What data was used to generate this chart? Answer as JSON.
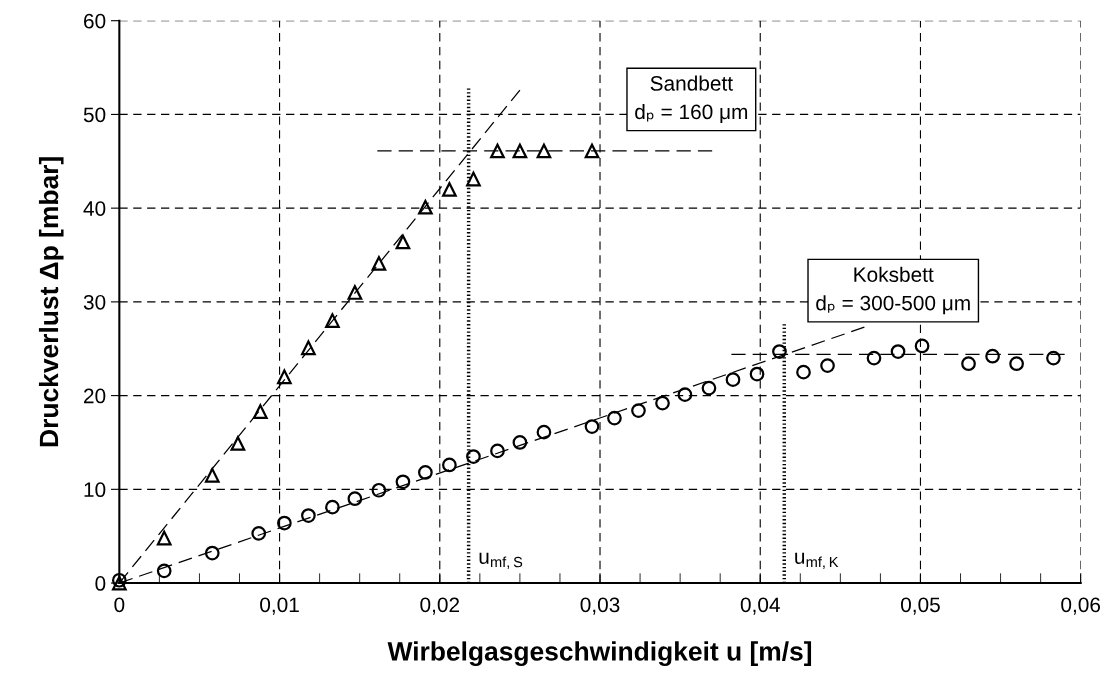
{
  "chart_data": {
    "type": "scatter",
    "xlabel": "Wirbelgasgeschwindigkeit u [m/s]",
    "ylabel": "Druckverlust Δp [mbar]",
    "xlim": [
      0,
      0.06
    ],
    "xticks": [
      0,
      {
        "value": 0.01,
        "label": "0,01"
      },
      {
        "value": 0.02,
        "label": "0,02"
      },
      {
        "value": 0.03,
        "label": "0,03"
      },
      {
        "value": 0.04,
        "label": "0,04"
      },
      {
        "value": 0.05,
        "label": "0,05"
      },
      {
        "value": 0.06,
        "label": "0,06"
      }
    ],
    "ylim": [
      0,
      60
    ],
    "yticks": [
      0,
      10,
      20,
      30,
      40,
      50,
      60
    ],
    "grid": true,
    "series": [
      {
        "name": "Sandbett\ndₚ = 160 μm",
        "color": "#000000",
        "marker": "triangle",
        "x": [
          0,
          0.0028,
          0.0058,
          0.0074,
          0.0088,
          0.0103,
          0.0118,
          0.0133,
          0.0147,
          0.0162,
          0.0177,
          0.0191,
          0.0206,
          0.0221,
          0.0236,
          0.025,
          0.0265,
          0.0295
        ],
        "values": [
          0,
          4.8,
          11.5,
          14.9,
          18.3,
          22.0,
          25.1,
          28.0,
          31.0,
          34.1,
          36.4,
          40.1,
          42.0,
          43.1,
          46.1,
          46.1,
          46.1,
          46.1
        ]
      },
      {
        "name": "Koksbett\ndₚ = 300-500 μm",
        "color": "#000000",
        "marker": "circle",
        "x": [
          0,
          0.0028,
          0.0058,
          0.0087,
          0.0103,
          0.0118,
          0.0133,
          0.0147,
          0.0162,
          0.0177,
          0.0191,
          0.0206,
          0.0221,
          0.0236,
          0.025,
          0.0265,
          0.0295,
          0.0309,
          0.0324,
          0.0339,
          0.0353,
          0.0368,
          0.0383,
          0.0398,
          0.0412,
          0.0427,
          0.0442,
          0.0471,
          0.0486,
          0.0501,
          0.053,
          0.0545,
          0.056,
          0.0583
        ],
        "values": [
          0.3,
          1.3,
          3.2,
          5.3,
          6.4,
          7.2,
          8.1,
          9.0,
          9.9,
          10.8,
          11.8,
          12.6,
          13.5,
          14.1,
          15.0,
          16.1,
          16.7,
          17.6,
          18.4,
          19.2,
          20.1,
          20.8,
          21.7,
          22.3,
          24.7,
          22.5,
          23.2,
          24.0,
          24.7,
          25.3,
          23.4,
          24.2,
          23.4,
          24.0
        ]
      },
      {
        "type": "line",
        "line_style": "dashed",
        "marker": "none",
        "color": "#000000",
        "x": [
          0,
          0.025
        ],
        "values": [
          0,
          52.6
        ]
      },
      {
        "type": "line",
        "line_style": "dashed",
        "marker": "none",
        "color": "#000000",
        "x": [
          0.0161,
          0.037
        ],
        "values": [
          46.1,
          46.1
        ]
      },
      {
        "type": "line",
        "line_style": "dashed",
        "marker": "none",
        "color": "#000000",
        "x": [
          0,
          0.0465
        ],
        "values": [
          0,
          27.3
        ]
      },
      {
        "type": "line",
        "line_style": "dashed",
        "marker": "none",
        "color": "#000000",
        "x": [
          0.0382,
          0.059
        ],
        "values": [
          24.4,
          24.4
        ]
      }
    ],
    "ref_lines": [
      {
        "axis": "x",
        "value": 0.0218,
        "label": "u$_{mf,S}$",
        "line_style": "dotted",
        "color": "#000000"
      },
      {
        "axis": "x",
        "value": 0.0415,
        "label": "u$_{mf,K}$",
        "line_style": "dotted",
        "color": "#000000"
      }
    ]
  }
}
